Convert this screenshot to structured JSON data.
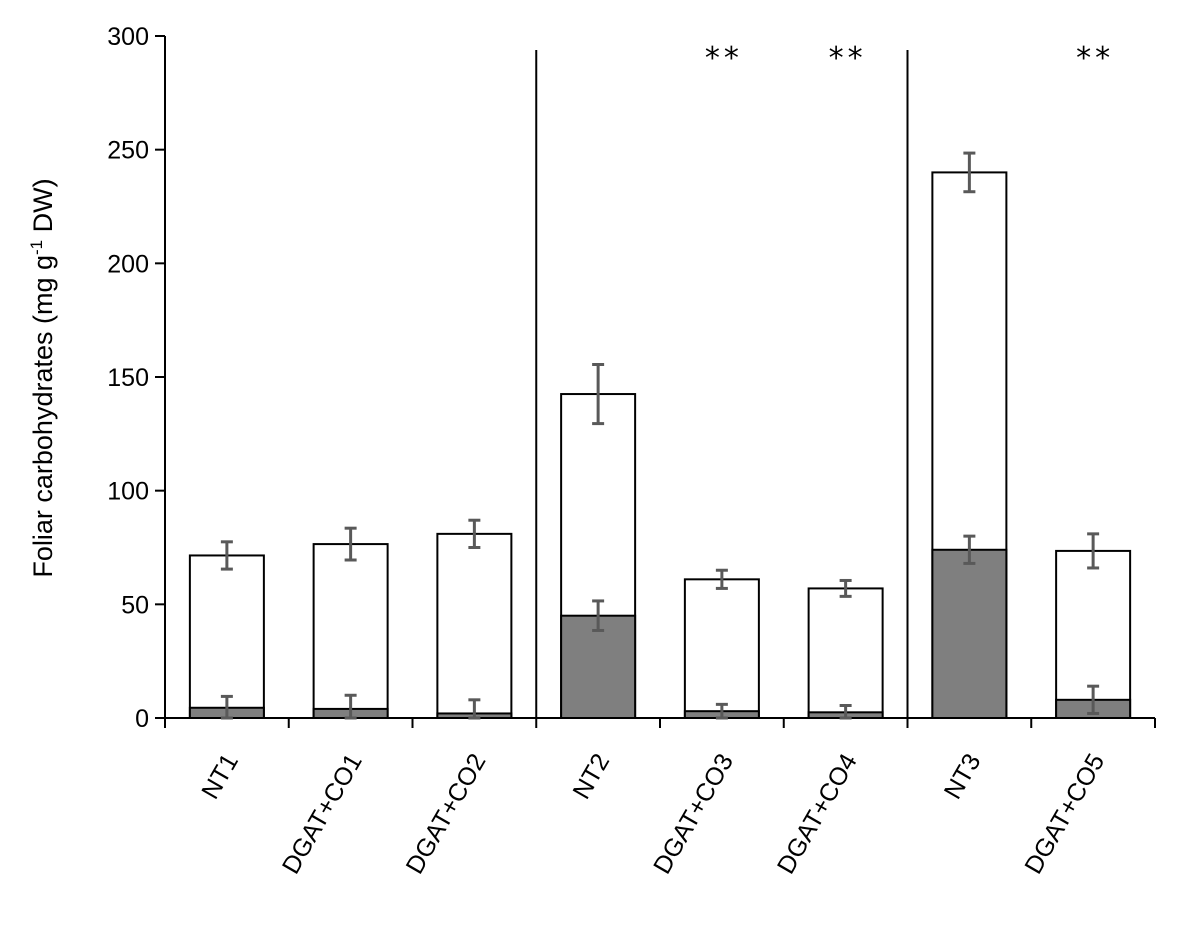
{
  "chart_data": {
    "type": "bar",
    "stacked": true,
    "categories": [
      "NT1",
      "DGAT+CO1",
      "DGAT+CO2",
      "NT2",
      "DGAT+CO3",
      "DGAT+CO4",
      "NT3",
      "DGAT+CO5"
    ],
    "groups": [
      [
        "NT1",
        "DGAT+CO1",
        "DGAT+CO2"
      ],
      [
        "NT2",
        "DGAT+CO3",
        "DGAT+CO4"
      ],
      [
        "NT3",
        "DGAT+CO5"
      ]
    ],
    "series": [
      {
        "color": "#7f7f7f",
        "values": [
          4.5,
          4,
          2,
          45,
          3,
          2.5,
          74,
          8
        ],
        "errors": [
          5,
          6,
          6,
          6.5,
          3,
          3,
          6,
          6
        ]
      },
      {
        "color": "#ffffff",
        "values": [
          67,
          72.5,
          79,
          97.5,
          58,
          54.5,
          166,
          65.5
        ],
        "errors": [
          6,
          7,
          6,
          13,
          4,
          3.5,
          8.5,
          7.5
        ]
      }
    ],
    "totals": [
      71.5,
      76.5,
      81,
      142.5,
      61,
      57,
      240,
      73.5
    ],
    "significance": [
      "",
      "",
      "",
      "",
      "**",
      "**",
      "",
      "**"
    ],
    "ylabel_main": "Foliar carbohydrates (mg g",
    "ylabel_sup": "-1",
    "ylabel_end": " DW)",
    "ylim": [
      0,
      300
    ],
    "yticks": [
      "0",
      "50",
      "100",
      "150",
      "200",
      "250",
      "300"
    ],
    "ytick_values": [
      0,
      50,
      100,
      150,
      200,
      250,
      300
    ],
    "grid": false,
    "legend": "none"
  }
}
